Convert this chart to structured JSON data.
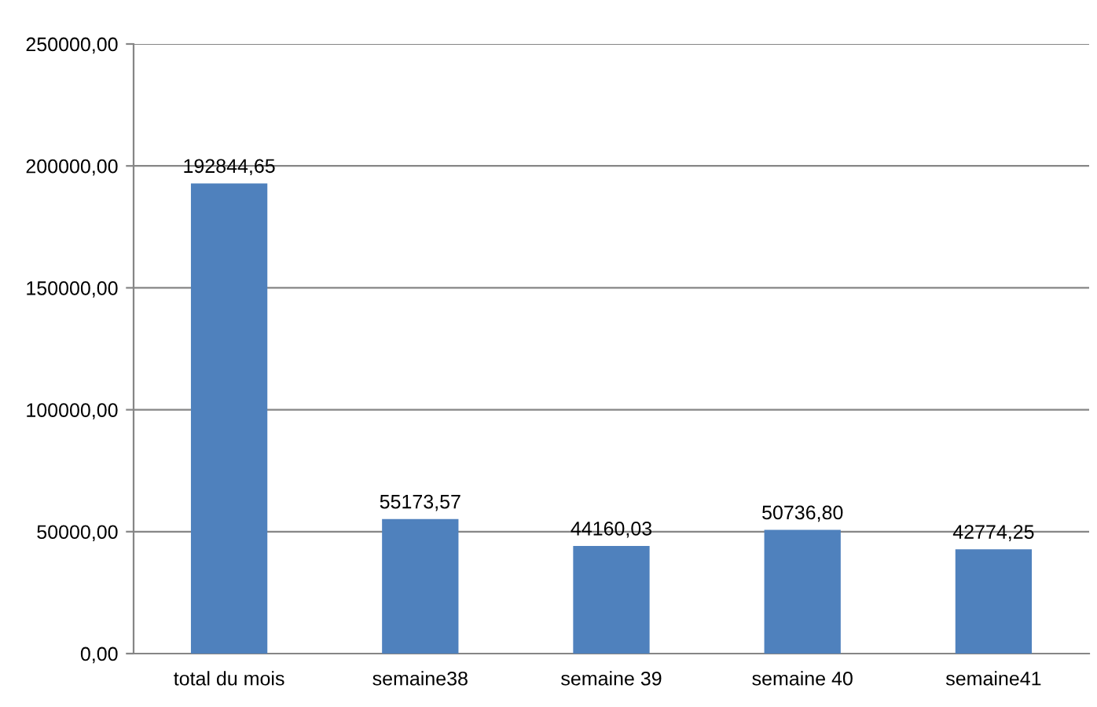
{
  "chart_data": {
    "type": "bar",
    "categories": [
      "total du mois",
      "semaine38",
      "semaine 39",
      "semaine 40",
      "semaine41"
    ],
    "values": [
      192844.65,
      55173.57,
      44160.03,
      50736.8,
      42774.25
    ],
    "value_labels": [
      "192844,65",
      "55173,57",
      "44160,03",
      "50736,80",
      "42774,25"
    ],
    "color": "#4f81bd",
    "ylim": [
      0,
      250000
    ],
    "yticks": [
      {
        "value": 0,
        "label": "0,00"
      },
      {
        "value": 50000,
        "label": "50000,00"
      },
      {
        "value": 100000,
        "label": "100000,00"
      },
      {
        "value": 150000,
        "label": "150000,00"
      },
      {
        "value": 200000,
        "label": "200000,00"
      },
      {
        "value": 250000,
        "label": "250000,00"
      }
    ],
    "grid": "y"
  }
}
